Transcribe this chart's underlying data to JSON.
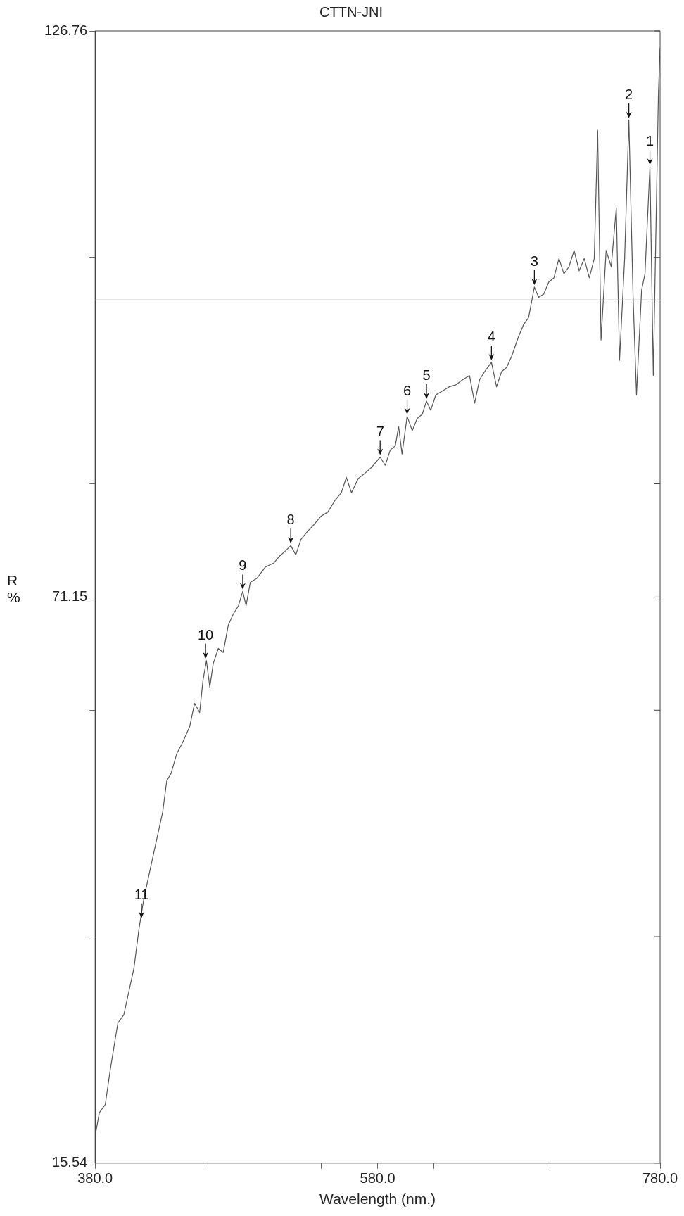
{
  "chart_data": {
    "type": "line",
    "title": "CTTN-JNI",
    "xlabel": "Wavelength (nm.)",
    "ylabel": "R %",
    "xlim": [
      380,
      780
    ],
    "xticks": [
      {
        "value": 380,
        "label": "380.0"
      },
      {
        "value": 460,
        "label": null
      },
      {
        "value": 540,
        "label": null
      },
      {
        "value": 580,
        "label": "580.0"
      },
      {
        "value": 620,
        "label": null
      },
      {
        "value": 700,
        "label": null
      },
      {
        "value": 780,
        "label": "780.0"
      }
    ],
    "ylim": [
      15.54,
      126.76
    ],
    "yticks": [
      15.54,
      {
        "value": 37.784,
        "label": null
      },
      {
        "value": 60.028,
        "label": null
      },
      71.15,
      {
        "value": 82.272,
        "label": null
      },
      {
        "value": 104.516,
        "label": null
      },
      126.76
    ],
    "ref_lines": [
      {
        "axis": "y",
        "value": 100.33,
        "label": null,
        "color": "#8a8a8a"
      }
    ],
    "series": [
      {
        "color": "#555555",
        "x": [
          380.0,
          383.0,
          387.2,
          390.7,
          396.1,
          400.3,
          403.9,
          407.5,
          411.0,
          414.6,
          418.2,
          421.8,
          425.4,
          427.8,
          430.7,
          433.7,
          437.9,
          442.1,
          446.9,
          450.4,
          454.0,
          456.4,
          458.8,
          461.2,
          463.6,
          467.2,
          470.7,
          474.3,
          477.9,
          481.5,
          484.5,
          486.9,
          489.9,
          494.6,
          500.6,
          506.6,
          510.1,
          514.9,
          518.5,
          522.1,
          525.7,
          530.4,
          535.2,
          540.0,
          544.8,
          549.6,
          554.3,
          557.9,
          561.5,
          566.3,
          571.0,
          575.8,
          579.4,
          581.8,
          585.4,
          589.0,
          592.5,
          594.9,
          597.3,
          600.9,
          604.5,
          608.1,
          611.6,
          614.6,
          617.6,
          621.2,
          626.0,
          630.7,
          635.5,
          640.3,
          645.1,
          648.7,
          652.2,
          655.8,
          660.6,
          664.2,
          667.8,
          671.3,
          674.9,
          679.7,
          683.3,
          686.9,
          691.0,
          694.0,
          697.6,
          701.2,
          704.8,
          708.4,
          711.9,
          715.5,
          719.1,
          722.7,
          726.3,
          729.9,
          733.4,
          735.8,
          738.2,
          741.8,
          745.4,
          749.0,
          751.3,
          754.9,
          757.9,
          760.9,
          763.3,
          766.9,
          769.3,
          772.8,
          775.2,
          778.8,
          780.0
        ],
        "values": [
          18.2,
          20.5,
          21.3,
          24.7,
          29.3,
          30.1,
          32.4,
          34.7,
          38.5,
          41.6,
          43.9,
          46.2,
          48.5,
          50.0,
          53.1,
          53.8,
          55.8,
          56.9,
          58.4,
          60.7,
          59.8,
          63.0,
          64.9,
          62.3,
          64.6,
          66.1,
          65.7,
          68.4,
          69.5,
          70.3,
          71.7,
          70.3,
          72.6,
          73.0,
          74.1,
          74.5,
          75.1,
          75.7,
          76.2,
          75.3,
          76.8,
          77.6,
          78.3,
          79.1,
          79.5,
          80.6,
          81.4,
          82.9,
          81.4,
          82.8,
          83.3,
          83.9,
          84.5,
          84.9,
          84.1,
          85.6,
          86.0,
          87.9,
          85.2,
          88.9,
          87.5,
          88.7,
          89.1,
          90.4,
          89.5,
          91.0,
          91.4,
          91.8,
          92.0,
          92.5,
          92.9,
          90.2,
          92.5,
          93.3,
          94.2,
          91.8,
          93.3,
          93.7,
          94.8,
          96.7,
          97.9,
          98.6,
          101.6,
          100.6,
          100.9,
          102.1,
          102.5,
          104.4,
          102.9,
          103.6,
          105.2,
          103.2,
          104.4,
          102.5,
          104.4,
          117.0,
          96.4,
          105.2,
          103.6,
          109.4,
          94.4,
          104.4,
          118.0,
          100.6,
          91.0,
          101.3,
          102.9,
          113.4,
          92.9,
          120.5,
          125.1
        ]
      }
    ],
    "annotations": [
      {
        "text": "1",
        "x": 772.8,
        "y": 113.4
      },
      {
        "text": "2",
        "x": 757.9,
        "y": 118.0
      },
      {
        "text": "3",
        "x": 691.0,
        "y": 101.6
      },
      {
        "text": "4",
        "x": 660.6,
        "y": 94.2
      },
      {
        "text": "5",
        "x": 614.6,
        "y": 90.4
      },
      {
        "text": "6",
        "x": 600.9,
        "y": 88.9
      },
      {
        "text": "7",
        "x": 581.8,
        "y": 84.9
      },
      {
        "text": "8",
        "x": 518.5,
        "y": 76.2
      },
      {
        "text": "9",
        "x": 484.5,
        "y": 71.7
      },
      {
        "text": "10",
        "x": 458.2,
        "y": 64.9
      },
      {
        "text": "11",
        "x": 412.8,
        "y": 39.4
      }
    ]
  }
}
